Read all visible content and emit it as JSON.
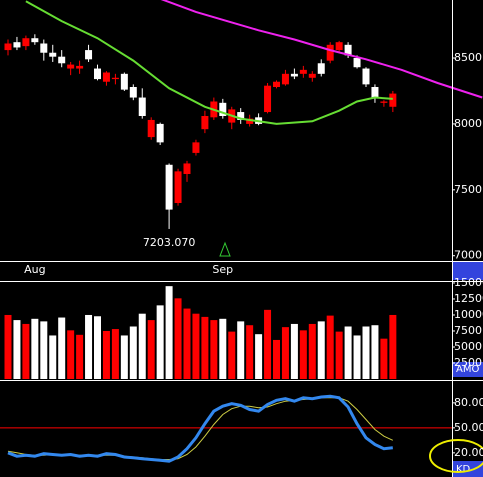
{
  "chart_data": {
    "type": "candlestick",
    "categories": [
      null,
      null,
      null,
      "Aug",
      null,
      null,
      null,
      null,
      null,
      null,
      null,
      null,
      null,
      null,
      null,
      null,
      null,
      null,
      null,
      null,
      null,
      null,
      null,
      null,
      "Sep",
      null,
      null,
      null,
      null,
      null,
      null,
      null,
      null,
      null,
      null,
      null,
      null,
      null,
      null,
      null,
      null,
      null,
      null,
      null
    ],
    "open": [
      8560,
      8620,
      8590,
      8650,
      8610,
      8540,
      8510,
      8420,
      8420,
      8560,
      8420,
      8320,
      8340,
      8380,
      8280,
      8200,
      7900,
      8000,
      7690,
      7400,
      7620,
      7780,
      7960,
      8050,
      8160,
      8010,
      8090,
      8000,
      8050,
      8090,
      8280,
      8300,
      8380,
      8380,
      8350,
      8460,
      8480,
      8560,
      8600,
      8500,
      8420,
      8280,
      8160,
      8130
    ],
    "high": [
      8640,
      8660,
      8670,
      8680,
      8640,
      8600,
      8560,
      8470,
      8480,
      8600,
      8450,
      8400,
      8380,
      8390,
      8300,
      8270,
      8050,
      8010,
      7700,
      7660,
      7720,
      7880,
      8100,
      8200,
      8190,
      8130,
      8120,
      8070,
      8080,
      8310,
      8330,
      8410,
      8420,
      8440,
      8400,
      8490,
      8620,
      8630,
      8620,
      8520,
      8430,
      8300,
      8180,
      8250
    ],
    "low": [
      8520,
      8560,
      8560,
      8600,
      8480,
      8470,
      8430,
      8370,
      8380,
      8470,
      8330,
      8290,
      8300,
      8250,
      8180,
      8040,
      7880,
      7840,
      7203.07,
      7380,
      7560,
      7760,
      7930,
      8030,
      8040,
      7960,
      8000,
      7980,
      7990,
      8080,
      8270,
      8290,
      8340,
      8350,
      8320,
      8360,
      8460,
      8540,
      8500,
      8420,
      8280,
      8160,
      8130,
      8090
    ],
    "close": [
      8610,
      8580,
      8650,
      8620,
      8540,
      8510,
      8460,
      8450,
      8440,
      8490,
      8340,
      8390,
      8350,
      8260,
      8200,
      8060,
      8030,
      7860,
      7350,
      7640,
      7700,
      7860,
      8060,
      8170,
      8060,
      8110,
      8030,
      8040,
      8000,
      8290,
      8320,
      8380,
      8360,
      8410,
      8380,
      8380,
      8600,
      8620,
      8520,
      8430,
      8300,
      8200,
      8170,
      8230
    ],
    "up_color": "#ff0000",
    "down_color": "#ffffff",
    "ylim": [
      6960,
      8940
    ],
    "yticks": [
      {
        "value": 7000,
        "label": "7000.00"
      },
      {
        "value": 7500,
        "label": "7500.00"
      },
      {
        "value": 8000,
        "label": "8000.00"
      },
      {
        "value": 8500,
        "label": "8500.00"
      }
    ],
    "moving_averages": [
      {
        "color": "#66dd33",
        "x": [
          2,
          6,
          10,
          14,
          18,
          22,
          26,
          30,
          34,
          37,
          39,
          41,
          43
        ],
        "values": [
          8930,
          8780,
          8650,
          8480,
          8270,
          8130,
          8040,
          8000,
          8020,
          8100,
          8170,
          8200,
          8190
        ]
      },
      {
        "color": "#ee22ee",
        "x": [
          17,
          21,
          25,
          28,
          32,
          36,
          40,
          44,
          48,
          53
        ],
        "values": [
          8950,
          8850,
          8770,
          8710,
          8640,
          8560,
          8490,
          8410,
          8310,
          8200
        ]
      }
    ],
    "annotation": "7203.070",
    "volume": {
      "label": "AMO",
      "values": [
        10000,
        9200,
        8600,
        9400,
        9000,
        6800,
        9600,
        7600,
        6900,
        10000,
        9800,
        7500,
        7800,
        6800,
        8200,
        10200,
        9200,
        11500,
        14500,
        12600,
        11000,
        10200,
        9700,
        9200,
        9400,
        7400,
        9000,
        8400,
        7000,
        10800,
        6100,
        8100,
        8600,
        7600,
        8600,
        9000,
        9900,
        7400,
        8200,
        6800,
        8200,
        8400,
        6300,
        10000
      ],
      "ylim": [
        0,
        15150
      ],
      "yticks": [
        2500,
        5000,
        7500,
        10000,
        12500,
        15000
      ]
    },
    "oscillator": {
      "label": "KD",
      "series": [
        {
          "color": "#3388ee",
          "values": [
            20,
            16,
            17,
            16,
            19,
            18,
            17,
            18,
            16,
            17,
            16,
            19,
            18,
            15,
            14,
            13,
            12,
            11,
            10,
            15,
            25,
            38,
            55,
            70,
            76,
            79,
            77,
            72,
            70,
            78,
            83,
            85,
            82,
            86,
            85,
            87,
            88,
            86,
            75,
            55,
            38,
            30,
            25,
            26
          ]
        },
        {
          "color": "#cccc44",
          "values": [
            22,
            20,
            18,
            17,
            17,
            18,
            18,
            17,
            17,
            17,
            17,
            17,
            17,
            16,
            15,
            14,
            13,
            12,
            12,
            13,
            18,
            27,
            40,
            54,
            66,
            73,
            76,
            76,
            74,
            75,
            79,
            82,
            83,
            84,
            85,
            86,
            86,
            86,
            82,
            72,
            60,
            48,
            40,
            35
          ]
        }
      ],
      "ylim": [
        -9,
        105
      ],
      "yticks": [
        {
          "value": 20,
          "label": "20.00"
        },
        {
          "value": 50,
          "label": "50.00"
        },
        {
          "value": 80,
          "label": "80.00"
        }
      ],
      "reference_line": {
        "value": 50,
        "color": "#ff0000"
      }
    }
  }
}
